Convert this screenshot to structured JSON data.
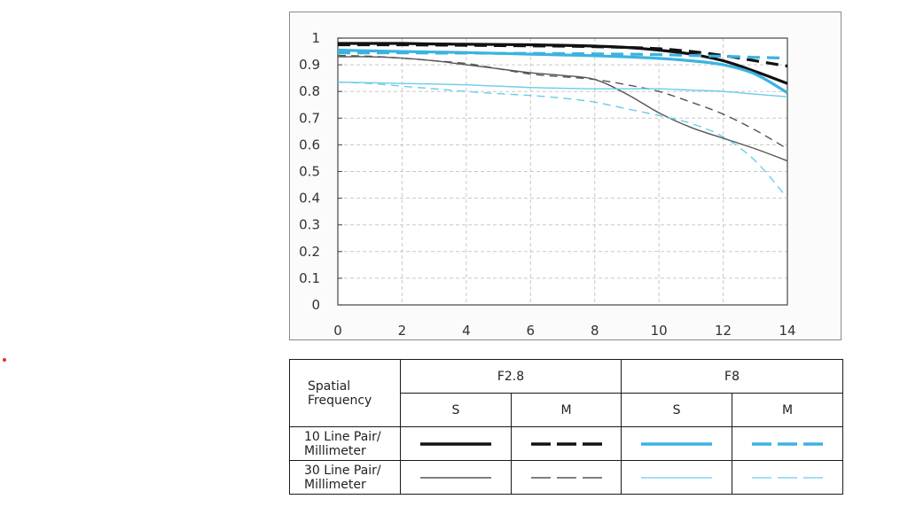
{
  "chart_data": {
    "type": "line",
    "title": "",
    "xlabel": "",
    "ylabel": "",
    "xlim": [
      0,
      14
    ],
    "ylim": [
      0,
      1
    ],
    "x_ticks": [
      "0",
      "2",
      "4",
      "6",
      "8",
      "10",
      "12",
      "14"
    ],
    "y_ticks": [
      "0",
      "0.1",
      "0.2",
      "0.3",
      "0.4",
      "0.5",
      "0.6",
      "0.7",
      "0.8",
      "0.9",
      "1"
    ],
    "grid": true,
    "x": [
      0,
      1,
      2,
      3,
      4,
      5,
      6,
      7,
      8,
      9,
      10,
      11,
      12,
      13,
      14
    ],
    "series": [
      {
        "name": "F2.8 S 10 Line Pair/Millimeter",
        "color": "#111111",
        "style": "solid",
        "weight": "thick",
        "values": [
          0.98,
          0.98,
          0.98,
          0.978,
          0.977,
          0.976,
          0.975,
          0.973,
          0.97,
          0.965,
          0.955,
          0.94,
          0.915,
          0.875,
          0.83
        ]
      },
      {
        "name": "F2.8 M 10 Line Pair/Millimeter",
        "color": "#111111",
        "style": "dashed",
        "weight": "thick",
        "values": [
          0.975,
          0.975,
          0.975,
          0.974,
          0.973,
          0.972,
          0.971,
          0.97,
          0.968,
          0.965,
          0.96,
          0.95,
          0.935,
          0.915,
          0.895
        ]
      },
      {
        "name": "F8 S 10 Line Pair/Millimeter",
        "color": "#3bb3e0",
        "style": "solid",
        "weight": "thick",
        "values": [
          0.955,
          0.952,
          0.95,
          0.948,
          0.946,
          0.943,
          0.94,
          0.937,
          0.934,
          0.93,
          0.924,
          0.915,
          0.9,
          0.865,
          0.795
        ]
      },
      {
        "name": "F8 M 10 Line Pair/Millimeter",
        "color": "#3bb3e0",
        "style": "dashed",
        "weight": "thick",
        "values": [
          0.945,
          0.945,
          0.945,
          0.944,
          0.944,
          0.943,
          0.943,
          0.942,
          0.941,
          0.94,
          0.938,
          0.935,
          0.932,
          0.928,
          0.925
        ]
      },
      {
        "name": "F2.8 S 30 Line Pair/Millimeter",
        "color": "#555555",
        "style": "solid",
        "weight": "thin",
        "values": [
          0.93,
          0.93,
          0.925,
          0.915,
          0.9,
          0.885,
          0.87,
          0.86,
          0.845,
          0.79,
          0.72,
          0.665,
          0.625,
          0.585,
          0.54
        ]
      },
      {
        "name": "F2.8 M 30 Line Pair/Millimeter",
        "color": "#555555",
        "style": "dashed",
        "weight": "thin",
        "values": [
          0.935,
          0.932,
          0.925,
          0.915,
          0.905,
          0.885,
          0.865,
          0.855,
          0.845,
          0.825,
          0.8,
          0.76,
          0.715,
          0.655,
          0.585
        ]
      },
      {
        "name": "F8 S 30 Line Pair/Millimeter",
        "color": "#6ccbea",
        "style": "solid",
        "weight": "thin",
        "values": [
          0.835,
          0.833,
          0.83,
          0.828,
          0.825,
          0.82,
          0.815,
          0.812,
          0.81,
          0.81,
          0.81,
          0.805,
          0.8,
          0.79,
          0.78
        ]
      },
      {
        "name": "F8 M 30 Line Pair/Millimeter",
        "color": "#6ccbea",
        "style": "dashed",
        "weight": "thin",
        "values": [
          0.835,
          0.83,
          0.82,
          0.81,
          0.8,
          0.792,
          0.785,
          0.775,
          0.76,
          0.735,
          0.71,
          0.68,
          0.63,
          0.54,
          0.4
        ]
      }
    ]
  },
  "legend": {
    "header_label": "Spatial Frequency",
    "header_line1": "Spatial",
    "header_line2": "Frequency",
    "apertures": [
      "F2.8",
      "F8"
    ],
    "sub_cols": [
      "S",
      "M",
      "S",
      "M"
    ],
    "rows": [
      {
        "label_line1": "10 Line Pair/",
        "label_line2": "Millimeter"
      },
      {
        "label_line1": "30 Line Pair/",
        "label_line2": "Millimeter"
      }
    ]
  },
  "colors": {
    "black": "#111111",
    "gray": "#555555",
    "blue": "#3bb3e0",
    "light_blue": "#6ccbea",
    "grid": "#c8c8c8",
    "marker": "#e0302f"
  }
}
